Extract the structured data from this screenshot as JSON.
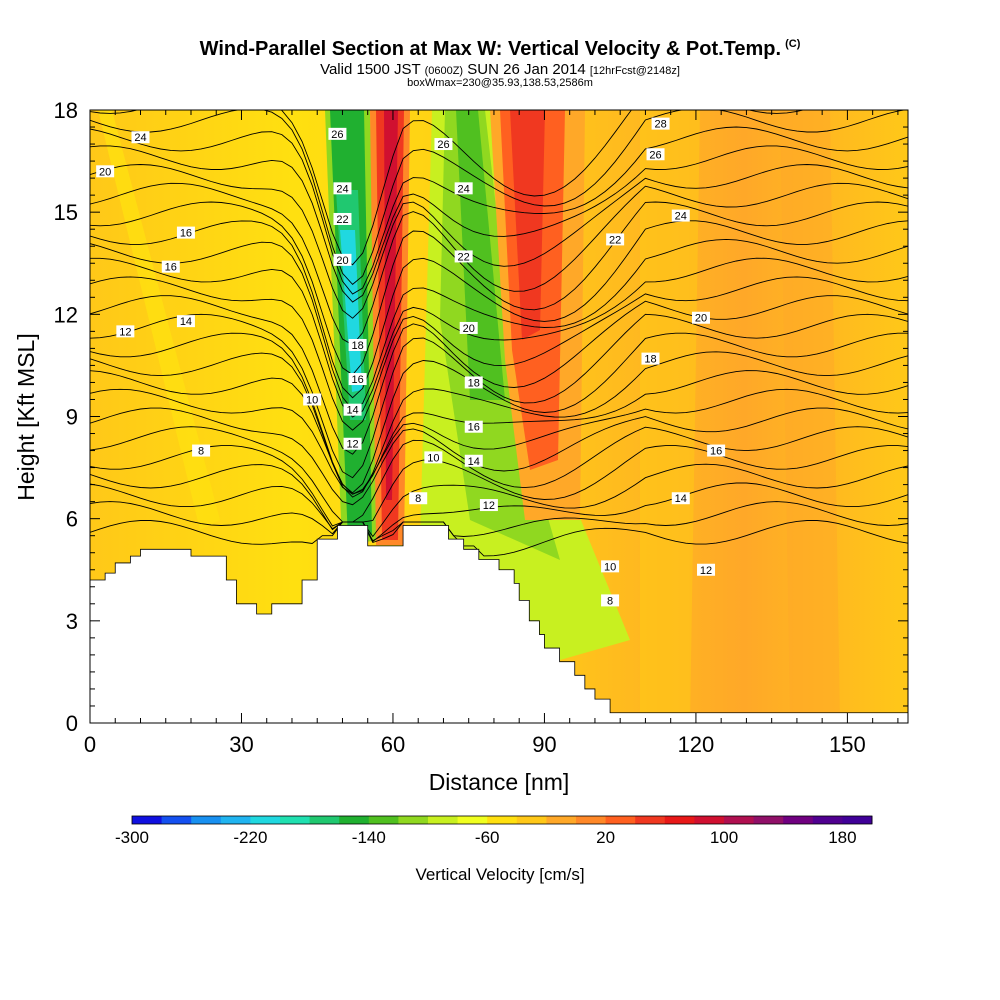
{
  "header": {
    "title": "Wind-Parallel Section at Max W: Vertical Velocity & Pot.Temp.",
    "copyright": "(C)",
    "valid_prefix": "Valid 1500 JST",
    "valid_utc": "(0600Z)",
    "valid_date": "SUN 26 Jan 2014",
    "forecast": "[12hrFcst@2148z]",
    "box_info": "boxWmax=230@35.93,138.53,2586m"
  },
  "chart_data": {
    "type": "heatmap",
    "xlabel": "Distance [nm]",
    "ylabel": "Height [Kft MSL]",
    "xlim": [
      0,
      162
    ],
    "ylim": [
      0,
      18
    ],
    "x_ticks": [
      0,
      30,
      60,
      90,
      120,
      150
    ],
    "y_ticks": [
      0,
      3,
      6,
      9,
      12,
      15,
      18
    ],
    "colorbar": {
      "label": "Vertical Velocity [cm/s]",
      "min": -300,
      "max": 200,
      "step": 20,
      "tick_labels": [
        -300,
        -220,
        -140,
        -60,
        20,
        100,
        180
      ],
      "colors": [
        "#1010e0",
        "#1450f0",
        "#1890f0",
        "#20b4f0",
        "#20d8e0",
        "#20e0b0",
        "#20c870",
        "#20b030",
        "#50c020",
        "#90d820",
        "#c8f020",
        "#f0ff20",
        "#ffe010",
        "#ffc818",
        "#ffa828",
        "#ff8828",
        "#ff6020",
        "#f03820",
        "#e81818",
        "#d01030",
        "#b01050",
        "#901068",
        "#700080",
        "#500090",
        "#400098"
      ]
    },
    "terrain_kft": [
      [
        0,
        4.2
      ],
      [
        3,
        4.2
      ],
      [
        3,
        4.4
      ],
      [
        5,
        4.4
      ],
      [
        5,
        4.7
      ],
      [
        8,
        4.7
      ],
      [
        8,
        4.9
      ],
      [
        10,
        4.9
      ],
      [
        10,
        5.1
      ],
      [
        20,
        5.1
      ],
      [
        20,
        4.9
      ],
      [
        27,
        4.9
      ],
      [
        27,
        4.2
      ],
      [
        29,
        4.2
      ],
      [
        29,
        3.5
      ],
      [
        33,
        3.5
      ],
      [
        33,
        3.2
      ],
      [
        36,
        3.2
      ],
      [
        36,
        3.5
      ],
      [
        42,
        3.5
      ],
      [
        42,
        4.2
      ],
      [
        45,
        4.2
      ],
      [
        45,
        5.4
      ],
      [
        49,
        5.4
      ],
      [
        49,
        5.8
      ],
      [
        55,
        5.8
      ],
      [
        55,
        5.2
      ],
      [
        62,
        5.2
      ],
      [
        62,
        5.8
      ],
      [
        71,
        5.8
      ],
      [
        71,
        5.4
      ],
      [
        74,
        5.4
      ],
      [
        74,
        5.1
      ],
      [
        77,
        5.1
      ],
      [
        77,
        4.8
      ],
      [
        81,
        4.8
      ],
      [
        81,
        4.5
      ],
      [
        84,
        4.5
      ],
      [
        84,
        4.1
      ],
      [
        85,
        4.1
      ],
      [
        85,
        3.6
      ],
      [
        87,
        3.6
      ],
      [
        87,
        3.0
      ],
      [
        89,
        3.0
      ],
      [
        89,
        2.6
      ],
      [
        90,
        2.6
      ],
      [
        90,
        2.2
      ],
      [
        93,
        2.2
      ],
      [
        93,
        1.8
      ],
      [
        96,
        1.8
      ],
      [
        96,
        1.4
      ],
      [
        98,
        1.4
      ],
      [
        98,
        1.0
      ],
      [
        100,
        1.0
      ],
      [
        100,
        0.7
      ],
      [
        103,
        0.7
      ],
      [
        103,
        0.3
      ],
      [
        162,
        0.3
      ]
    ],
    "potential_temperature_contours": {
      "levels_labeled": [
        "8",
        "10",
        "12",
        "14",
        "16",
        "18",
        "20",
        "22",
        "24",
        "26",
        "28"
      ],
      "labels": [
        {
          "text": "24",
          "x": 10,
          "y": 17.2
        },
        {
          "text": "20",
          "x": 3,
          "y": 16.2
        },
        {
          "text": "16",
          "x": 19,
          "y": 14.4
        },
        {
          "text": "16",
          "x": 16,
          "y": 13.4
        },
        {
          "text": "14",
          "x": 19,
          "y": 11.8
        },
        {
          "text": "12",
          "x": 7,
          "y": 11.5
        },
        {
          "text": "10",
          "x": 44,
          "y": 9.5
        },
        {
          "text": "8",
          "x": 22,
          "y": 8.0
        },
        {
          "text": "26",
          "x": 49,
          "y": 17.3
        },
        {
          "text": "24",
          "x": 50,
          "y": 15.7
        },
        {
          "text": "22",
          "x": 50,
          "y": 14.8
        },
        {
          "text": "20",
          "x": 50,
          "y": 13.6
        },
        {
          "text": "18",
          "x": 53,
          "y": 11.1
        },
        {
          "text": "16",
          "x": 53,
          "y": 10.1
        },
        {
          "text": "14",
          "x": 52,
          "y": 9.2
        },
        {
          "text": "12",
          "x": 52,
          "y": 8.2
        },
        {
          "text": "26",
          "x": 70,
          "y": 17.0
        },
        {
          "text": "24",
          "x": 74,
          "y": 15.7
        },
        {
          "text": "22",
          "x": 74,
          "y": 13.7
        },
        {
          "text": "20",
          "x": 75,
          "y": 11.6
        },
        {
          "text": "18",
          "x": 76,
          "y": 10.0
        },
        {
          "text": "16",
          "x": 76,
          "y": 8.7
        },
        {
          "text": "14",
          "x": 76,
          "y": 7.7
        },
        {
          "text": "12",
          "x": 79,
          "y": 6.4
        },
        {
          "text": "10",
          "x": 68,
          "y": 7.8
        },
        {
          "text": "8",
          "x": 65,
          "y": 6.6
        },
        {
          "text": "10",
          "x": 103,
          "y": 4.6
        },
        {
          "text": "8",
          "x": 103,
          "y": 3.6
        },
        {
          "text": "12",
          "x": 122,
          "y": 4.5
        },
        {
          "text": "14",
          "x": 117,
          "y": 6.6
        },
        {
          "text": "16",
          "x": 124,
          "y": 8.0
        },
        {
          "text": "18",
          "x": 111,
          "y": 10.7
        },
        {
          "text": "20",
          "x": 121,
          "y": 11.9
        },
        {
          "text": "22",
          "x": 104,
          "y": 14.2
        },
        {
          "text": "24",
          "x": 117,
          "y": 14.9
        },
        {
          "text": "26",
          "x": 112,
          "y": 16.7
        },
        {
          "text": "28",
          "x": 113,
          "y": 17.6
        }
      ]
    }
  }
}
